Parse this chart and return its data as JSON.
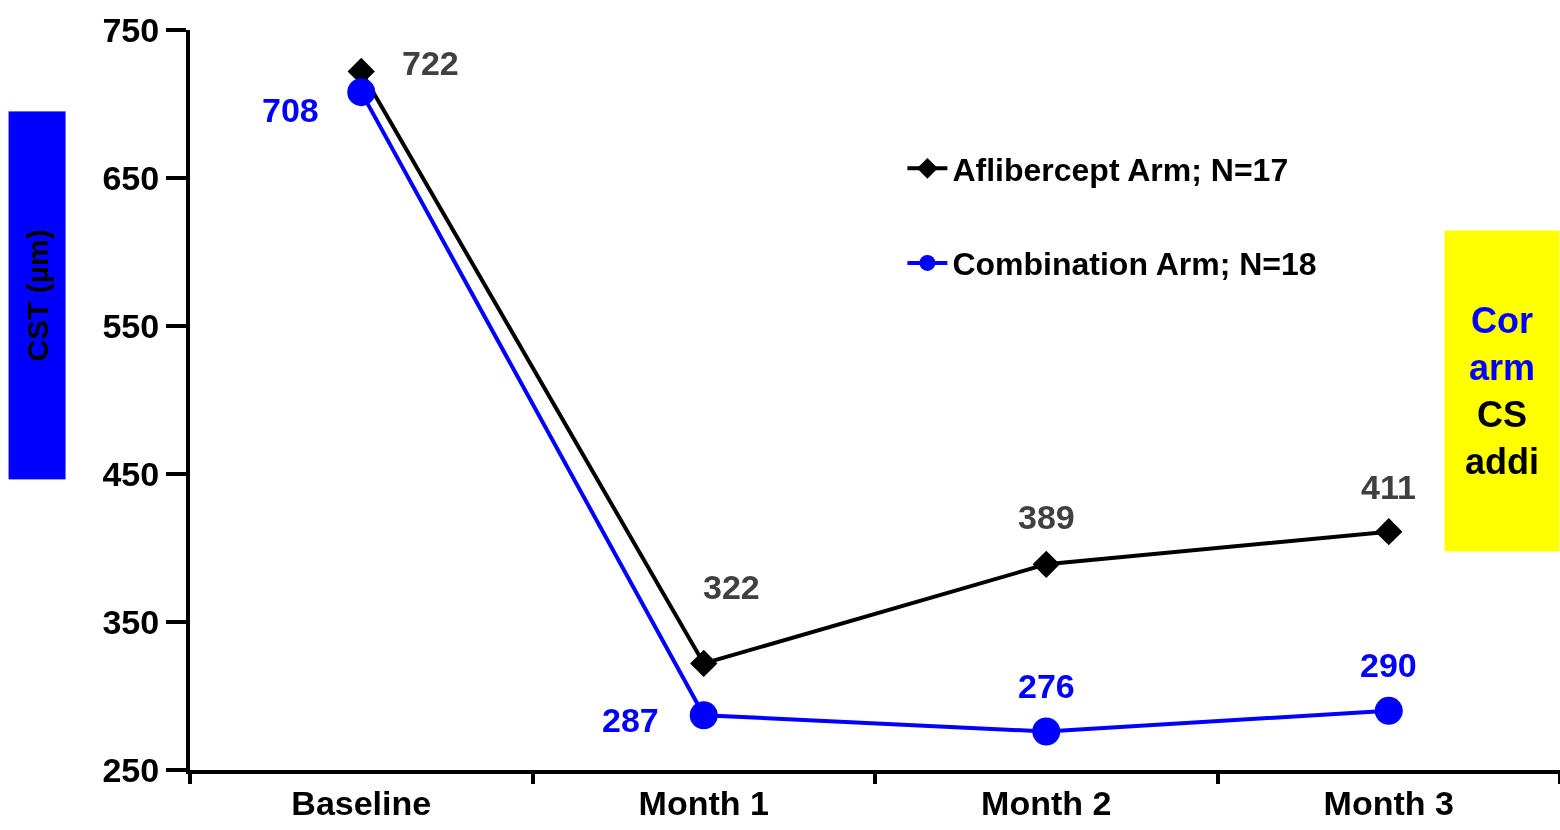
{
  "chart_data": {
    "type": "line",
    "categories": [
      "Baseline",
      "Month 1",
      "Month 2",
      "Month 3"
    ],
    "ylabel": "CST (µm)",
    "ylim": [
      250,
      750
    ],
    "yticks": [
      250,
      350,
      450,
      550,
      650,
      750
    ],
    "series": [
      {
        "name": "Aflibercept Arm; N=17",
        "color": "#000000",
        "marker": "diamond",
        "values": [
          722,
          322,
          389,
          411
        ]
      },
      {
        "name": "Combination Arm; N=18",
        "color": "#0000ff",
        "marker": "circle",
        "values": [
          708,
          287,
          276,
          290
        ]
      }
    ],
    "data_labels": true,
    "legend": "top right",
    "line_style": "solid",
    "annotations": [
      "Cor\narm\nCS\naddi"
    ]
  }
}
